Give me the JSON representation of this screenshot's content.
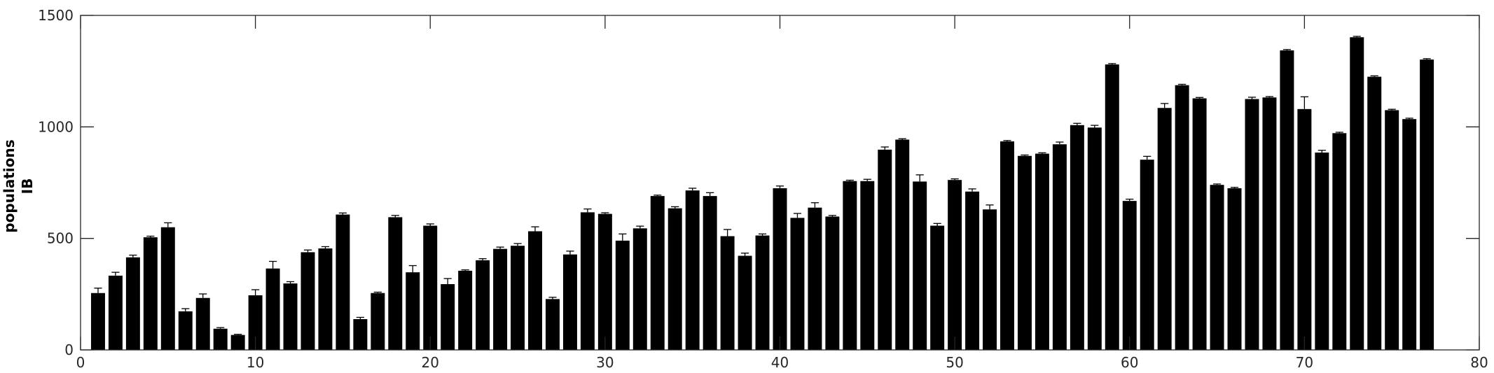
{
  "chart_data": {
    "type": "bar",
    "title": "",
    "xlabel": "",
    "ylabel_lines": [
      "populations",
      "IB"
    ],
    "xlim": [
      0,
      80
    ],
    "ylim": [
      0,
      1500
    ],
    "xticks": [
      0,
      10,
      20,
      30,
      40,
      50,
      60,
      70,
      80
    ],
    "yticks": [
      0,
      500,
      1000,
      1500
    ],
    "grid": false,
    "bar_color": "#000000",
    "x": [
      1,
      2,
      3,
      4,
      5,
      6,
      7,
      8,
      9,
      10,
      11,
      12,
      13,
      14,
      15,
      16,
      17,
      18,
      19,
      20,
      21,
      22,
      23,
      24,
      25,
      26,
      27,
      28,
      29,
      30,
      31,
      32,
      33,
      34,
      35,
      36,
      37,
      38,
      39,
      40,
      41,
      42,
      43,
      44,
      45,
      46,
      47,
      48,
      49,
      50,
      51,
      52,
      53,
      54,
      55,
      56,
      57,
      58,
      59,
      60,
      61,
      62,
      63,
      64,
      65,
      66,
      67,
      68,
      69,
      70,
      71,
      72,
      73,
      74,
      75,
      76,
      77
    ],
    "values": [
      255,
      333,
      415,
      505,
      550,
      173,
      233,
      95,
      67,
      245,
      365,
      298,
      438,
      455,
      607,
      138,
      255,
      595,
      348,
      557,
      295,
      355,
      402,
      453,
      467,
      532,
      228,
      428,
      617,
      610,
      490,
      545,
      690,
      635,
      715,
      690,
      510,
      422,
      513,
      725,
      592,
      638,
      598,
      757,
      757,
      898,
      943,
      755,
      557,
      762,
      710,
      630,
      935,
      870,
      880,
      922,
      1008,
      997,
      1280,
      668,
      853,
      1085,
      1187,
      1128,
      740,
      725,
      1125,
      1132,
      1343,
      1080,
      885,
      972,
      1402,
      1225,
      1075,
      1035,
      1302
    ],
    "errors": [
      22,
      15,
      10,
      5,
      20,
      12,
      18,
      5,
      3,
      25,
      32,
      8,
      10,
      8,
      7,
      8,
      4,
      8,
      30,
      8,
      25,
      4,
      7,
      8,
      10,
      20,
      8,
      15,
      15,
      5,
      30,
      10,
      4,
      7,
      10,
      15,
      30,
      12,
      7,
      10,
      20,
      22,
      5,
      4,
      8,
      12,
      4,
      30,
      10,
      5,
      12,
      20,
      4,
      4,
      4,
      10,
      8,
      10,
      4,
      8,
      15,
      20,
      4,
      4,
      4,
      4,
      8,
      4,
      4,
      55,
      10,
      4,
      4,
      4,
      4,
      4,
      4
    ]
  }
}
